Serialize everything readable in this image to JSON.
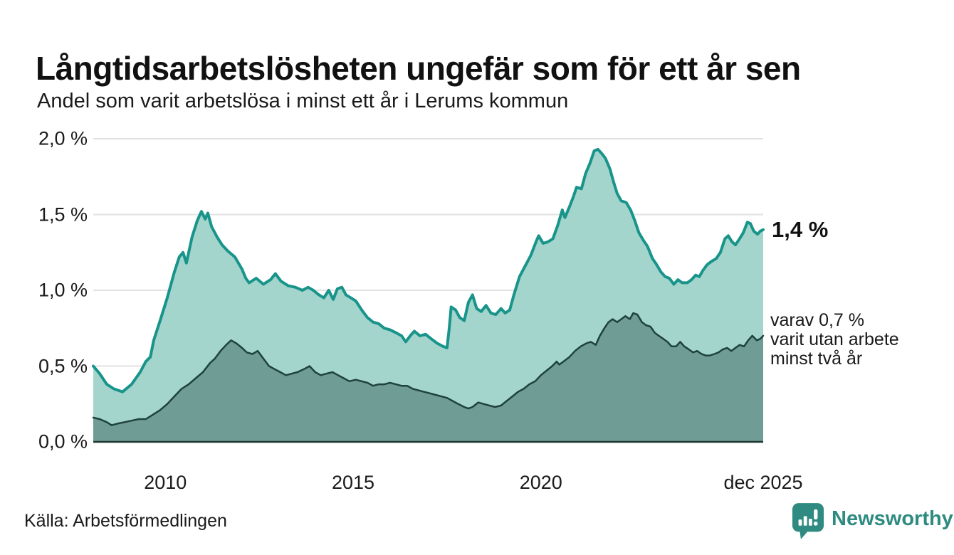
{
  "colors": {
    "accent_line": "#18948a",
    "light_fill": "#a4d5cd",
    "dark_fill": "#6f9c95",
    "dark_line": "#1e423d",
    "baseline": "#1c3833",
    "grid": "#e2e2e2",
    "text": "#1a1a1a",
    "brand": "#2f8b81"
  },
  "footer": {
    "source": "Källa: Arbetsförmedlingen",
    "brand_name": "Newsworthy"
  },
  "chart_data": {
    "type": "area",
    "title": "Långtidsarbetslösheten ungefär som för ett år sen",
    "subtitle": "Andel som varit arbetslösa i minst ett år i Lerums kommun",
    "legend_position": "right-annotations",
    "grid": true,
    "x_axis": {
      "min": 2008.08,
      "max": 2025.92,
      "ticks": [
        {
          "label": "2010",
          "t": 2010
        },
        {
          "label": "2015",
          "t": 2015
        },
        {
          "label": "2020",
          "t": 2020
        },
        {
          "label": "dec 2025",
          "t": 2025.92
        }
      ]
    },
    "y_axis": {
      "min": 0,
      "max": 2.0,
      "ticks": [
        {
          "label": "2,0 %",
          "v": 2.0
        },
        {
          "label": "1,5 %",
          "v": 1.5
        },
        {
          "label": "1,0 %",
          "v": 1.0
        },
        {
          "label": "0,5 %",
          "v": 0.5
        },
        {
          "label": "0,0 %",
          "v": 0.0
        }
      ]
    },
    "annotations": {
      "latest_total": "1,4 %",
      "subset_line1": "varav 0,7 %",
      "subset_line2": "varit utan arbete",
      "subset_line3": "minst två år"
    },
    "series": [
      {
        "name": "arbetslösa minst ett år",
        "line_color": "#18948a",
        "fill_color": "#a4d5cd",
        "line_width": 4,
        "points": [
          [
            2008.08,
            0.5
          ],
          [
            2008.25,
            0.45
          ],
          [
            2008.44,
            0.38
          ],
          [
            2008.63,
            0.35
          ],
          [
            2008.86,
            0.33
          ],
          [
            2009.1,
            0.38
          ],
          [
            2009.33,
            0.46
          ],
          [
            2009.48,
            0.53
          ],
          [
            2009.6,
            0.56
          ],
          [
            2009.69,
            0.67
          ],
          [
            2009.86,
            0.8
          ],
          [
            2010.05,
            0.95
          ],
          [
            2010.24,
            1.12
          ],
          [
            2010.37,
            1.22
          ],
          [
            2010.47,
            1.25
          ],
          [
            2010.56,
            1.18
          ],
          [
            2010.71,
            1.35
          ],
          [
            2010.85,
            1.46
          ],
          [
            2010.96,
            1.52
          ],
          [
            2011.06,
            1.47
          ],
          [
            2011.13,
            1.51
          ],
          [
            2011.23,
            1.42
          ],
          [
            2011.38,
            1.35
          ],
          [
            2011.51,
            1.3
          ],
          [
            2011.66,
            1.26
          ],
          [
            2011.85,
            1.22
          ],
          [
            2012.04,
            1.14
          ],
          [
            2012.14,
            1.08
          ],
          [
            2012.23,
            1.05
          ],
          [
            2012.42,
            1.08
          ],
          [
            2012.61,
            1.04
          ],
          [
            2012.8,
            1.07
          ],
          [
            2012.93,
            1.11
          ],
          [
            2013.08,
            1.06
          ],
          [
            2013.27,
            1.03
          ],
          [
            2013.46,
            1.02
          ],
          [
            2013.65,
            1.0
          ],
          [
            2013.8,
            1.02
          ],
          [
            2013.94,
            1.0
          ],
          [
            2014.09,
            0.97
          ],
          [
            2014.22,
            0.95
          ],
          [
            2014.35,
            1.0
          ],
          [
            2014.47,
            0.94
          ],
          [
            2014.58,
            1.01
          ],
          [
            2014.7,
            1.02
          ],
          [
            2014.81,
            0.97
          ],
          [
            2014.94,
            0.95
          ],
          [
            2015.07,
            0.93
          ],
          [
            2015.23,
            0.87
          ],
          [
            2015.38,
            0.82
          ],
          [
            2015.53,
            0.79
          ],
          [
            2015.68,
            0.78
          ],
          [
            2015.83,
            0.75
          ],
          [
            2015.98,
            0.74
          ],
          [
            2016.14,
            0.72
          ],
          [
            2016.29,
            0.7
          ],
          [
            2016.4,
            0.66
          ],
          [
            2016.52,
            0.7
          ],
          [
            2016.63,
            0.73
          ],
          [
            2016.78,
            0.7
          ],
          [
            2016.93,
            0.71
          ],
          [
            2017.08,
            0.68
          ],
          [
            2017.24,
            0.65
          ],
          [
            2017.39,
            0.63
          ],
          [
            2017.5,
            0.62
          ],
          [
            2017.56,
            0.75
          ],
          [
            2017.61,
            0.89
          ],
          [
            2017.73,
            0.87
          ],
          [
            2017.84,
            0.82
          ],
          [
            2017.96,
            0.8
          ],
          [
            2018.07,
            0.92
          ],
          [
            2018.18,
            0.97
          ],
          [
            2018.29,
            0.88
          ],
          [
            2018.41,
            0.86
          ],
          [
            2018.54,
            0.9
          ],
          [
            2018.67,
            0.85
          ],
          [
            2018.8,
            0.84
          ],
          [
            2018.94,
            0.88
          ],
          [
            2019.05,
            0.85
          ],
          [
            2019.17,
            0.87
          ],
          [
            2019.28,
            0.97
          ],
          [
            2019.43,
            1.09
          ],
          [
            2019.58,
            1.16
          ],
          [
            2019.73,
            1.23
          ],
          [
            2019.87,
            1.32
          ],
          [
            2019.94,
            1.36
          ],
          [
            2020.06,
            1.31
          ],
          [
            2020.19,
            1.32
          ],
          [
            2020.32,
            1.34
          ],
          [
            2020.45,
            1.43
          ],
          [
            2020.57,
            1.53
          ],
          [
            2020.64,
            1.48
          ],
          [
            2020.76,
            1.55
          ],
          [
            2020.87,
            1.62
          ],
          [
            2020.95,
            1.68
          ],
          [
            2021.08,
            1.67
          ],
          [
            2021.19,
            1.77
          ],
          [
            2021.31,
            1.84
          ],
          [
            2021.42,
            1.92
          ],
          [
            2021.52,
            1.93
          ],
          [
            2021.63,
            1.9
          ],
          [
            2021.72,
            1.87
          ],
          [
            2021.84,
            1.8
          ],
          [
            2021.93,
            1.72
          ],
          [
            2022.03,
            1.64
          ],
          [
            2022.14,
            1.59
          ],
          [
            2022.27,
            1.58
          ],
          [
            2022.39,
            1.53
          ],
          [
            2022.5,
            1.46
          ],
          [
            2022.61,
            1.38
          ],
          [
            2022.73,
            1.33
          ],
          [
            2022.84,
            1.29
          ],
          [
            2022.97,
            1.21
          ],
          [
            2023.08,
            1.17
          ],
          [
            2023.2,
            1.12
          ],
          [
            2023.31,
            1.09
          ],
          [
            2023.42,
            1.08
          ],
          [
            2023.54,
            1.04
          ],
          [
            2023.65,
            1.07
          ],
          [
            2023.76,
            1.05
          ],
          [
            2023.9,
            1.05
          ],
          [
            2024.01,
            1.07
          ],
          [
            2024.12,
            1.1
          ],
          [
            2024.22,
            1.09
          ],
          [
            2024.31,
            1.13
          ],
          [
            2024.43,
            1.17
          ],
          [
            2024.54,
            1.19
          ],
          [
            2024.67,
            1.21
          ],
          [
            2024.78,
            1.25
          ],
          [
            2024.9,
            1.34
          ],
          [
            2024.99,
            1.36
          ],
          [
            2025.09,
            1.32
          ],
          [
            2025.18,
            1.3
          ],
          [
            2025.29,
            1.34
          ],
          [
            2025.39,
            1.38
          ],
          [
            2025.5,
            1.45
          ],
          [
            2025.58,
            1.44
          ],
          [
            2025.67,
            1.39
          ],
          [
            2025.77,
            1.37
          ],
          [
            2025.84,
            1.39
          ],
          [
            2025.92,
            1.4
          ]
        ]
      },
      {
        "name": "varav arbetslösa minst två år",
        "line_color": "#1e423d",
        "fill_color": "#6f9c95",
        "line_width": 2.5,
        "points": [
          [
            2008.08,
            0.16
          ],
          [
            2008.25,
            0.15
          ],
          [
            2008.44,
            0.13
          ],
          [
            2008.57,
            0.11
          ],
          [
            2008.72,
            0.12
          ],
          [
            2008.91,
            0.13
          ],
          [
            2009.1,
            0.14
          ],
          [
            2009.29,
            0.15
          ],
          [
            2009.48,
            0.15
          ],
          [
            2009.67,
            0.18
          ],
          [
            2009.86,
            0.21
          ],
          [
            2010.05,
            0.25
          ],
          [
            2010.24,
            0.3
          ],
          [
            2010.43,
            0.35
          ],
          [
            2010.62,
            0.38
          ],
          [
            2010.81,
            0.42
          ],
          [
            2011.0,
            0.46
          ],
          [
            2011.19,
            0.52
          ],
          [
            2011.32,
            0.55
          ],
          [
            2011.47,
            0.6
          ],
          [
            2011.62,
            0.64
          ],
          [
            2011.75,
            0.67
          ],
          [
            2011.89,
            0.65
          ],
          [
            2012.04,
            0.62
          ],
          [
            2012.17,
            0.59
          ],
          [
            2012.32,
            0.58
          ],
          [
            2012.46,
            0.6
          ],
          [
            2012.61,
            0.55
          ],
          [
            2012.76,
            0.5
          ],
          [
            2012.91,
            0.48
          ],
          [
            2013.06,
            0.46
          ],
          [
            2013.21,
            0.44
          ],
          [
            2013.37,
            0.45
          ],
          [
            2013.52,
            0.46
          ],
          [
            2013.69,
            0.48
          ],
          [
            2013.84,
            0.5
          ],
          [
            2013.99,
            0.46
          ],
          [
            2014.14,
            0.44
          ],
          [
            2014.29,
            0.45
          ],
          [
            2014.45,
            0.46
          ],
          [
            2014.6,
            0.44
          ],
          [
            2014.75,
            0.42
          ],
          [
            2014.9,
            0.4
          ],
          [
            2015.07,
            0.41
          ],
          [
            2015.23,
            0.4
          ],
          [
            2015.38,
            0.39
          ],
          [
            2015.53,
            0.37
          ],
          [
            2015.68,
            0.38
          ],
          [
            2015.83,
            0.38
          ],
          [
            2015.98,
            0.39
          ],
          [
            2016.14,
            0.38
          ],
          [
            2016.29,
            0.37
          ],
          [
            2016.44,
            0.37
          ],
          [
            2016.59,
            0.35
          ],
          [
            2016.74,
            0.34
          ],
          [
            2016.89,
            0.33
          ],
          [
            2017.05,
            0.32
          ],
          [
            2017.2,
            0.31
          ],
          [
            2017.35,
            0.3
          ],
          [
            2017.5,
            0.29
          ],
          [
            2017.65,
            0.27
          ],
          [
            2017.8,
            0.25
          ],
          [
            2017.96,
            0.23
          ],
          [
            2018.07,
            0.22
          ],
          [
            2018.18,
            0.23
          ],
          [
            2018.33,
            0.26
          ],
          [
            2018.48,
            0.25
          ],
          [
            2018.63,
            0.24
          ],
          [
            2018.78,
            0.23
          ],
          [
            2018.94,
            0.24
          ],
          [
            2019.09,
            0.27
          ],
          [
            2019.24,
            0.3
          ],
          [
            2019.39,
            0.33
          ],
          [
            2019.54,
            0.35
          ],
          [
            2019.69,
            0.38
          ],
          [
            2019.85,
            0.4
          ],
          [
            2020.0,
            0.44
          ],
          [
            2020.15,
            0.47
          ],
          [
            2020.3,
            0.5
          ],
          [
            2020.42,
            0.53
          ],
          [
            2020.49,
            0.51
          ],
          [
            2020.6,
            0.53
          ],
          [
            2020.76,
            0.56
          ],
          [
            2020.91,
            0.6
          ],
          [
            2021.06,
            0.63
          ],
          [
            2021.21,
            0.65
          ],
          [
            2021.33,
            0.66
          ],
          [
            2021.46,
            0.64
          ],
          [
            2021.57,
            0.7
          ],
          [
            2021.69,
            0.75
          ],
          [
            2021.8,
            0.79
          ],
          [
            2021.91,
            0.81
          ],
          [
            2022.03,
            0.79
          ],
          [
            2022.14,
            0.81
          ],
          [
            2022.25,
            0.83
          ],
          [
            2022.37,
            0.81
          ],
          [
            2022.46,
            0.85
          ],
          [
            2022.57,
            0.84
          ],
          [
            2022.69,
            0.79
          ],
          [
            2022.8,
            0.77
          ],
          [
            2022.92,
            0.76
          ],
          [
            2023.03,
            0.72
          ],
          [
            2023.14,
            0.7
          ],
          [
            2023.26,
            0.68
          ],
          [
            2023.37,
            0.66
          ],
          [
            2023.48,
            0.63
          ],
          [
            2023.6,
            0.63
          ],
          [
            2023.71,
            0.66
          ],
          [
            2023.82,
            0.63
          ],
          [
            2023.94,
            0.61
          ],
          [
            2024.05,
            0.59
          ],
          [
            2024.16,
            0.6
          ],
          [
            2024.28,
            0.58
          ],
          [
            2024.39,
            0.57
          ],
          [
            2024.5,
            0.57
          ],
          [
            2024.62,
            0.58
          ],
          [
            2024.73,
            0.59
          ],
          [
            2024.84,
            0.61
          ],
          [
            2024.96,
            0.62
          ],
          [
            2025.07,
            0.6
          ],
          [
            2025.18,
            0.62
          ],
          [
            2025.29,
            0.64
          ],
          [
            2025.41,
            0.63
          ],
          [
            2025.52,
            0.67
          ],
          [
            2025.63,
            0.7
          ],
          [
            2025.75,
            0.67
          ],
          [
            2025.84,
            0.68
          ],
          [
            2025.92,
            0.7
          ]
        ]
      }
    ]
  }
}
